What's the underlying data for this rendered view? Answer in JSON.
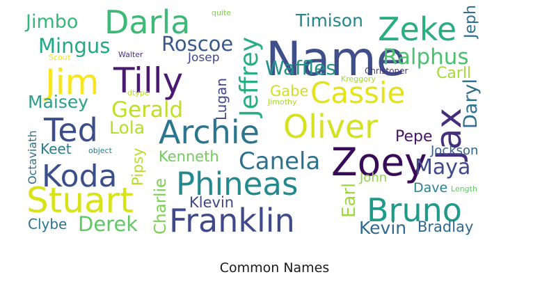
{
  "caption": "Common Names",
  "words": [
    {
      "text": "Name",
      "color": "#3e4f8a"
    },
    {
      "text": "Jax",
      "color": "#452f7a"
    },
    {
      "text": "Zoey",
      "color": "#3a0a5a"
    },
    {
      "text": "Jim",
      "color": "#f6e622"
    },
    {
      "text": "Stuart",
      "color": "#d8e219"
    },
    {
      "text": "Franklin",
      "color": "#404a8a"
    },
    {
      "text": "Darla",
      "color": "#3fb978"
    },
    {
      "text": "Tilly",
      "color": "#4a1a70"
    },
    {
      "text": "Archie",
      "color": "#2b768e"
    },
    {
      "text": "Phineas",
      "color": "#23898e"
    },
    {
      "text": "Oliver",
      "color": "#d6e11e"
    },
    {
      "text": "Cassie",
      "color": "#e3e318"
    },
    {
      "text": "Zeke",
      "color": "#29af7f"
    },
    {
      "text": "Koda",
      "color": "#3b508b"
    },
    {
      "text": "Ted",
      "color": "#3d4d8a"
    },
    {
      "text": "Bruno",
      "color": "#1f9a8a"
    },
    {
      "text": "Jeffrey",
      "color": "#28ae80"
    },
    {
      "text": "Canela",
      "color": "#2c728e"
    },
    {
      "text": "Ralphus",
      "color": "#4ac16d"
    },
    {
      "text": "Waffles",
      "color": "#21918c"
    },
    {
      "text": "Timison",
      "color": "#25858e"
    },
    {
      "text": "Roscoe",
      "color": "#38598c"
    },
    {
      "text": "Mingus",
      "color": "#22a884"
    },
    {
      "text": "Jimbo",
      "color": "#35b779"
    },
    {
      "text": "Gerald",
      "color": "#bddf26"
    },
    {
      "text": "Maisey",
      "color": "#2a9f89"
    },
    {
      "text": "Lola",
      "color": "#b5de2b"
    },
    {
      "text": "Derek",
      "color": "#5ec962"
    },
    {
      "text": "Maya",
      "color": "#3e4a89"
    },
    {
      "text": "Kevin",
      "color": "#31688e"
    },
    {
      "text": "Bradlay",
      "color": "#31668e"
    },
    {
      "text": "Daryl",
      "color": "#2d708e"
    },
    {
      "text": "Earl",
      "color": "#9bd93c"
    },
    {
      "text": "Pepe",
      "color": "#471365"
    },
    {
      "text": "Kenneth",
      "color": "#6ece58"
    },
    {
      "text": "Pipsy",
      "color": "#b8de29"
    },
    {
      "text": "Charlie",
      "color": "#7ad151"
    },
    {
      "text": "Klevin",
      "color": "#414487"
    },
    {
      "text": "Lugan",
      "color": "#3f4788"
    },
    {
      "text": "Gabe",
      "color": "#d0e11c"
    },
    {
      "text": "Carll",
      "color": "#a5db36"
    },
    {
      "text": "Jeph",
      "color": "#2e6e8e"
    },
    {
      "text": "Jockson",
      "color": "#33638d"
    },
    {
      "text": "Dave",
      "color": "#26828e"
    },
    {
      "text": "John",
      "color": "#90d743"
    },
    {
      "text": "Keet",
      "color": "#287c8e"
    },
    {
      "text": "Clybe",
      "color": "#2c738e"
    },
    {
      "text": "Octaviath",
      "color": "#2c718e"
    },
    {
      "text": "Josep",
      "color": "#404688"
    },
    {
      "text": "Christoper",
      "color": "#46337e"
    },
    {
      "text": "Kreggory",
      "color": "#a0da39"
    },
    {
      "text": "Jimothy",
      "color": "#a8db34"
    },
    {
      "text": "quite",
      "color": "#7fd34e"
    },
    {
      "text": "Scout",
      "color": "#f1e51d"
    },
    {
      "text": "Walter",
      "color": "#46307e"
    },
    {
      "text": "dtype",
      "color": "#b5de2b"
    },
    {
      "text": "object",
      "color": "#2a788e"
    },
    {
      "text": "Length",
      "color": "#5ec962"
    }
  ]
}
